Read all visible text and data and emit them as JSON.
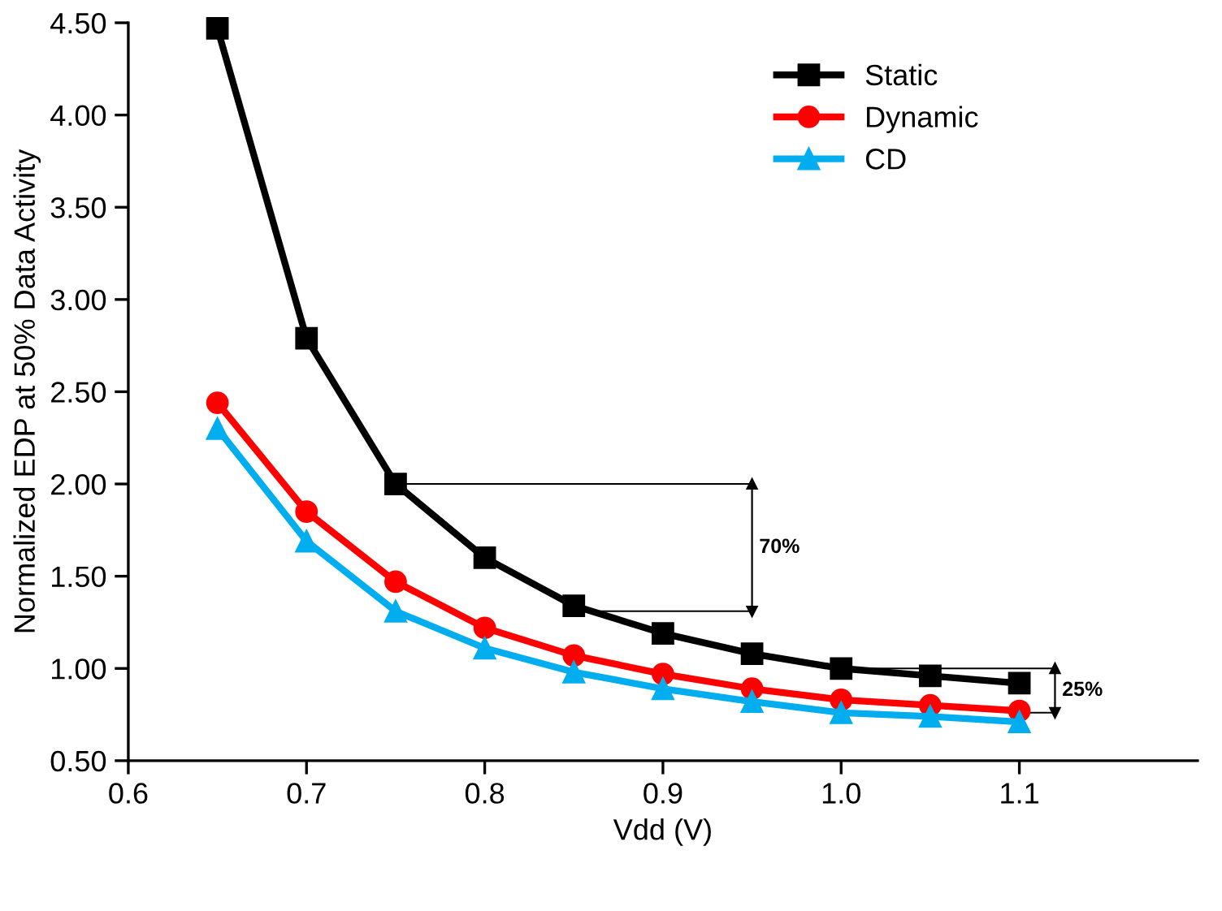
{
  "chart_data": {
    "type": "line",
    "xlabel": "Vdd (V)",
    "ylabel": "Normalized EDP at 50% Data Activity",
    "x": [
      0.65,
      0.7,
      0.75,
      0.8,
      0.85,
      0.9,
      0.95,
      1.0,
      1.05,
      1.1
    ],
    "series": [
      {
        "name": "Static",
        "color": "#000000",
        "marker": "square",
        "values": [
          4.47,
          2.79,
          2.0,
          1.6,
          1.34,
          1.19,
          1.08,
          1.0,
          0.96,
          0.92
        ]
      },
      {
        "name": "Dynamic",
        "color": "#ff0000",
        "marker": "circle",
        "values": [
          2.44,
          1.85,
          1.47,
          1.22,
          1.07,
          0.97,
          0.89,
          0.83,
          0.8,
          0.77
        ]
      },
      {
        "name": "CD",
        "color": "#00aeef",
        "marker": "triangle",
        "values": [
          2.3,
          1.69,
          1.31,
          1.11,
          0.98,
          0.89,
          0.82,
          0.76,
          0.74,
          0.71
        ]
      }
    ],
    "xlim": [
      0.6,
      1.2
    ],
    "xticks": [
      {
        "value": 0.6,
        "label": "0.6"
      },
      {
        "value": 0.7,
        "label": "0.7"
      },
      {
        "value": 0.8,
        "label": "0.8"
      },
      {
        "value": 0.9,
        "label": "0.9"
      },
      {
        "value": 1.0,
        "label": "1.0"
      },
      {
        "value": 1.1,
        "label": "1.1"
      }
    ],
    "ylim": [
      0.5,
      4.5
    ],
    "yticks": [
      {
        "value": 0.5,
        "label": "0.50"
      },
      {
        "value": 1.0,
        "label": "1.00"
      },
      {
        "value": 1.5,
        "label": "1.50"
      },
      {
        "value": 2.0,
        "label": "2.00"
      },
      {
        "value": 2.5,
        "label": "2.50"
      },
      {
        "value": 3.0,
        "label": "3.00"
      },
      {
        "value": 3.5,
        "label": "3.50"
      },
      {
        "value": 4.0,
        "label": "4.00"
      },
      {
        "value": 4.5,
        "label": "4.50"
      }
    ],
    "annotations": [
      "70%",
      {
        "text": "25%",
        "x": 1.0,
        "y": 1.0
      }
    ],
    "legend": "top right",
    "grid": false,
    "line_style": "solid"
  }
}
